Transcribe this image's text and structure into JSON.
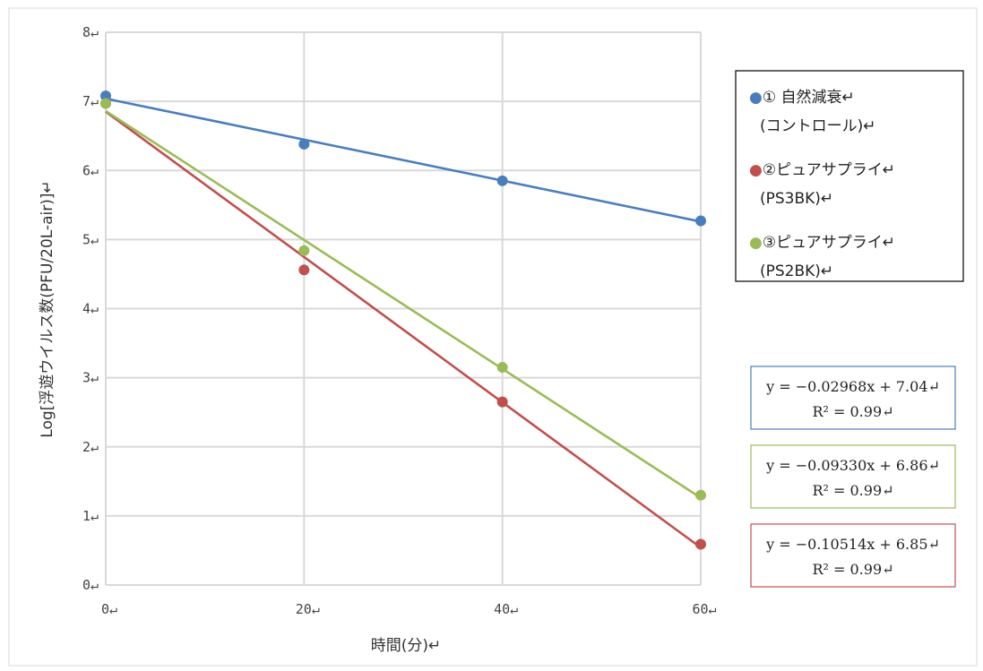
{
  "chart_data": {
    "type": "scatter",
    "x": [
      0,
      20,
      40,
      60
    ],
    "xlabel": "時間(分)↵",
    "ylabel": "Log[浮遊ウイルス数(PFU/20L-air)]↵",
    "xlim": [
      0,
      60
    ],
    "ylim": [
      0,
      8
    ],
    "x_tick_labels": [
      "0↵",
      "20↵",
      "40↵",
      "60↵"
    ],
    "y_tick_labels": [
      "0↵",
      "1↵",
      "2↵",
      "3↵",
      "4↵",
      "5↵",
      "6↵",
      "7↵",
      "8↵"
    ],
    "grid": true,
    "legend_position": "right",
    "series": [
      {
        "name": "①自然減衰(コントロール)",
        "legend_lines": [
          "●① 自然減衰↵",
          "(コントロール)↵"
        ],
        "color": "#4a7ebb",
        "values": [
          7.08,
          6.38,
          5.85,
          5.27
        ],
        "trendline": {
          "slope": -0.02968,
          "intercept": 7.04
        },
        "equation_lines": [
          "y = −0.02968x + 7.04↵",
          "R² = 0.99↵"
        ]
      },
      {
        "name": "②ピュアサプライ(PS3BK)",
        "legend_lines": [
          "●②ピュアサプライ↵",
          "(PS3BK)↵"
        ],
        "color": "#c0504d",
        "values": [
          6.97,
          4.56,
          2.65,
          0.59
        ],
        "trendline": {
          "slope": -0.10514,
          "intercept": 6.85
        },
        "equation_lines": [
          "y = −0.10514x + 6.85↵",
          "R² = 0.99↵"
        ]
      },
      {
        "name": "③ピュアサプライ(PS2BK)",
        "legend_lines": [
          "●③ピュアサプライ↵",
          "(PS2BK)↵"
        ],
        "color": "#9bbb59",
        "values": [
          6.97,
          4.84,
          3.15,
          1.3
        ],
        "trendline": {
          "slope": -0.0933,
          "intercept": 6.86
        },
        "equation_lines": [
          "y = −0.09330x + 6.86↵",
          "R² = 0.99↵"
        ]
      }
    ],
    "equation_order": [
      0,
      2,
      1
    ]
  }
}
